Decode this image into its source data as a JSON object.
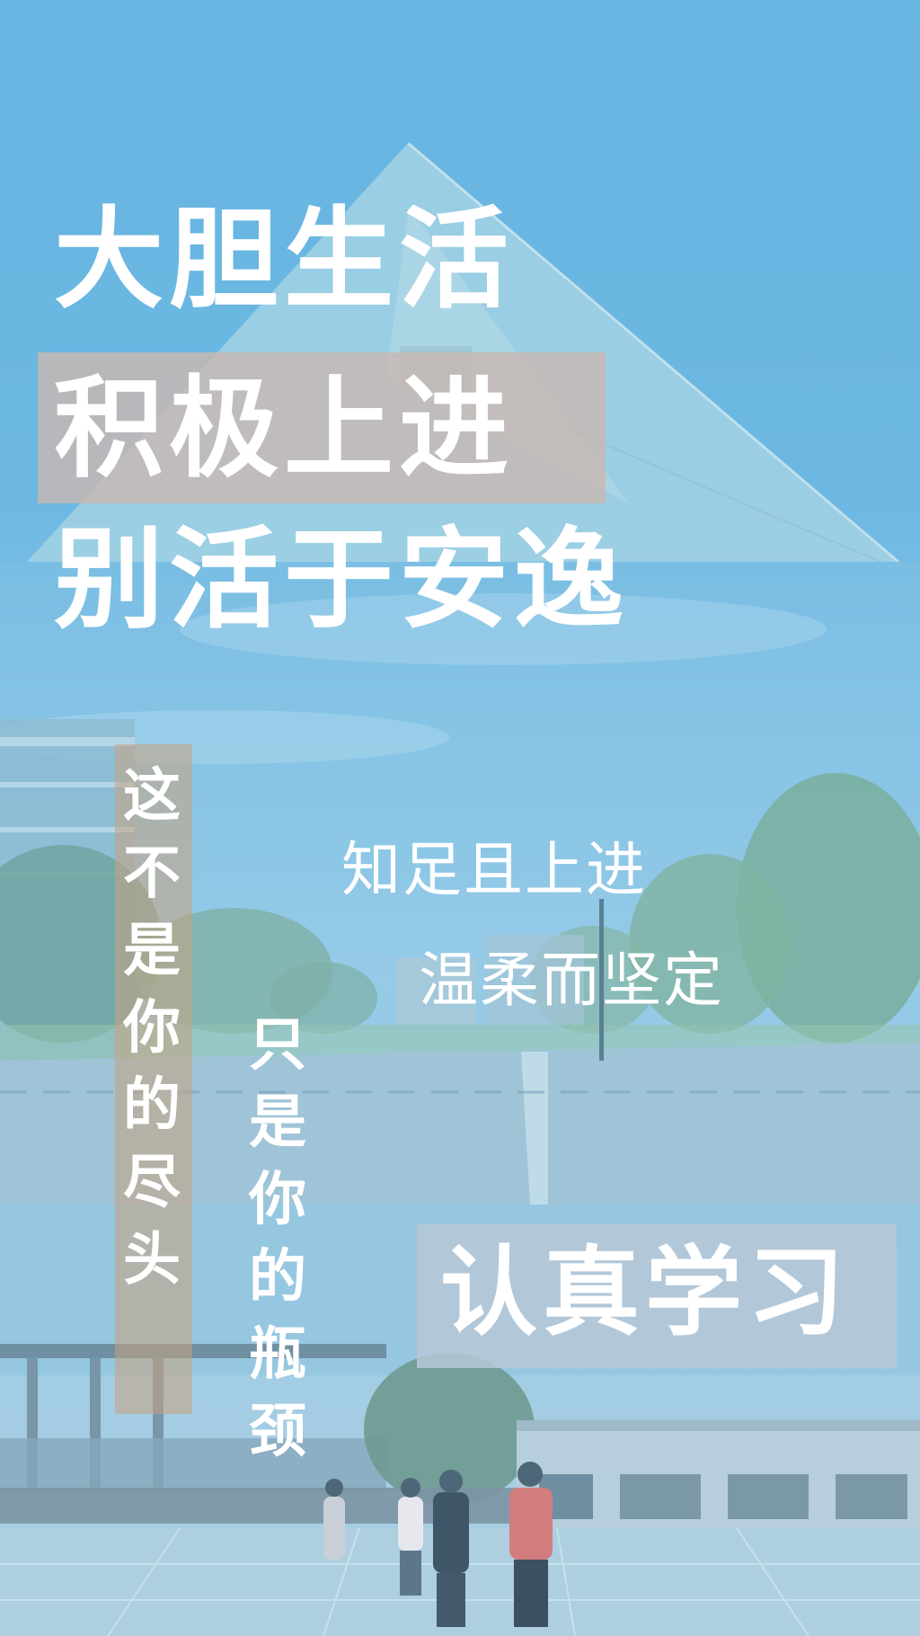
{
  "headline": {
    "line1": "大胆生活",
    "line2": "积极上进",
    "line3": "别活于安逸"
  },
  "right_text": {
    "line1": "知足且上进",
    "line2": "温柔而坚定"
  },
  "vertical_left": "这不是你的尽头",
  "vertical_middle": "只是你的瓶颈",
  "badge": "认真学习",
  "colors": {
    "sky": "#67b5e1",
    "highlight_line2": "#c9b8b0",
    "highlight_vertical": "#c9a27e",
    "badge_bg": "#b7c7d6",
    "text": "#ffffff"
  }
}
